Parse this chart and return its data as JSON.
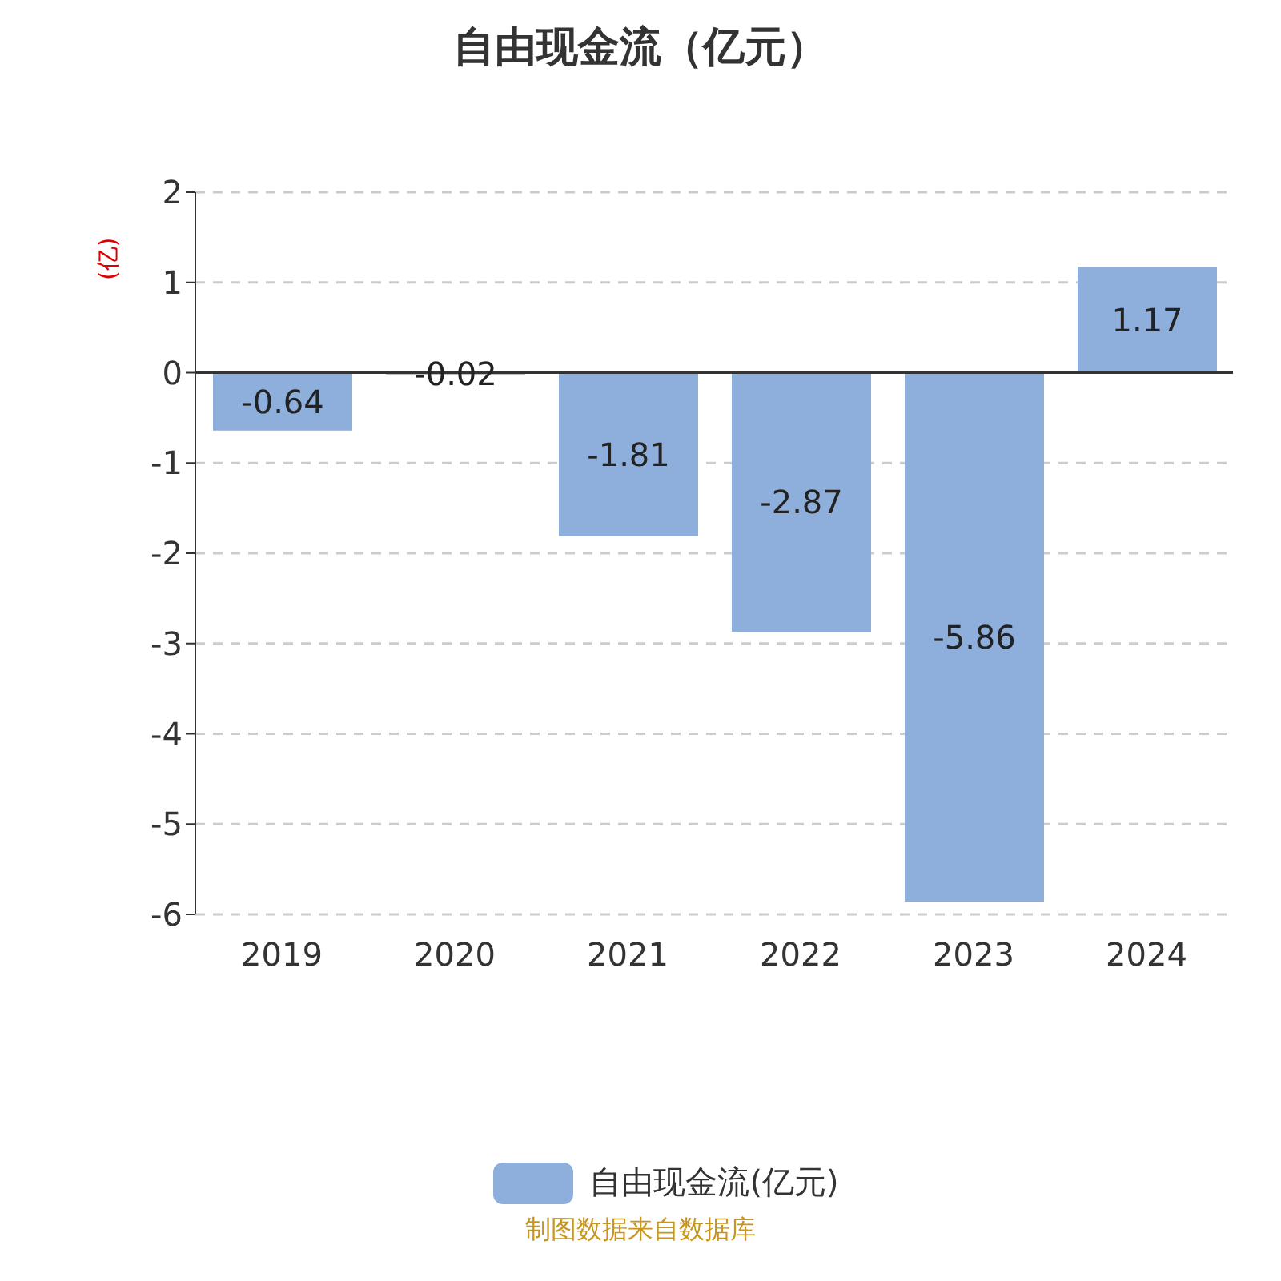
{
  "chart_data": {
    "type": "bar",
    "title": "自由现金流（亿元）",
    "ylabel": "(亿)",
    "categories": [
      "2019",
      "2020",
      "2021",
      "2022",
      "2023",
      "2024"
    ],
    "series": [
      {
        "name": "自由现金流(亿元)",
        "color": "#8eaedb",
        "values": [
          -0.64,
          -0.02,
          -1.81,
          -2.87,
          -5.86,
          1.17
        ]
      }
    ],
    "ylim": [
      -6,
      2
    ],
    "yticks": [
      -6,
      -5,
      -4,
      -3,
      -2,
      -1,
      0,
      1,
      2
    ],
    "grid": "y",
    "legend": "bottom",
    "data_labels": true,
    "annotations": [
      "制图数据来自数据库"
    ]
  }
}
